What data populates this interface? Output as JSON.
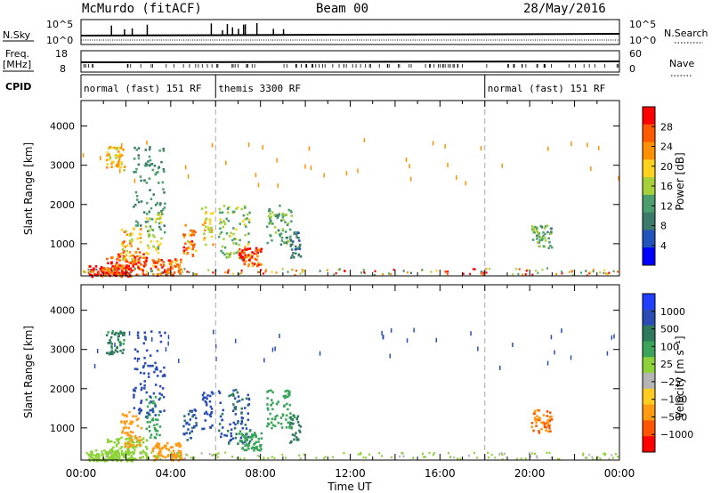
{
  "header": {
    "title": "McMurdo (fitACF)",
    "beam": "Beam 00",
    "date": "28/May/2016"
  },
  "summary_panel": {
    "nsky_label": "N.Sky",
    "nsearch_label": "N.Search",
    "freq_label_1": "Freq.",
    "freq_label_2": "[MHz]",
    "nave_label": "Nave",
    "cpid_label": "CPID",
    "left_ticks_top": [
      "10^5",
      "10^0"
    ],
    "right_ticks_top": [
      "10^5",
      "10^0"
    ],
    "left_ticks_freq": [
      "18",
      "8"
    ],
    "right_ticks_nave": [
      "60",
      "0"
    ]
  },
  "cpid_segments": [
    {
      "label": "normal (fast) 151 RF",
      "start": 0,
      "end": 6
    },
    {
      "label": "themis 3300 RF",
      "start": 6,
      "end": 18
    },
    {
      "label": "normal (fast) 151 RF",
      "start": 18,
      "end": 24
    }
  ],
  "colors": {
    "power_scale": [
      "#0000ff",
      "#2255bb",
      "#3c7a6a",
      "#4d9e6e",
      "#a6d13a",
      "#ffd21e",
      "#ff9100",
      "#ff5a00",
      "#ff0000"
    ],
    "velocity_scale": [
      "#2040ff",
      "#2a4cb4",
      "#2f7a5f",
      "#3aa55a",
      "#8ed23a",
      "#b4b4b4",
      "#ffcc22",
      "#ff9a11",
      "#ff5500",
      "#ff0000"
    ]
  },
  "chart_data": [
    {
      "type": "heatmap",
      "name": "power-panel",
      "ylabel": "Slant Range [km]",
      "xlabel": "",
      "x_ticks": [
        "00:00",
        "04:00",
        "08:00",
        "12:00",
        "16:00",
        "20:00",
        "00:00"
      ],
      "x_range_hours": [
        0,
        24
      ],
      "y_ticks": [
        1000,
        2000,
        3000,
        4000
      ],
      "ylim": [
        180,
        4650
      ],
      "colorbar": {
        "label": "Power [dB]",
        "ticks": [
          "4",
          "8",
          "12",
          "16",
          "20",
          "24",
          "28"
        ],
        "range": [
          0,
          30
        ]
      },
      "blobs": [
        {
          "t": 2.0,
          "r": 500,
          "dt": 1.8,
          "dr": 280,
          "val": 26
        },
        {
          "t": 1.3,
          "r": 300,
          "dt": 2.0,
          "dr": 160,
          "val": 28
        },
        {
          "t": 3.8,
          "r": 420,
          "dt": 1.3,
          "dr": 220,
          "val": 24
        },
        {
          "t": 2.2,
          "r": 1000,
          "dt": 0.9,
          "dr": 450,
          "val": 20
        },
        {
          "t": 3.2,
          "r": 1300,
          "dt": 0.7,
          "dr": 550,
          "val": 16
        },
        {
          "t": 4.8,
          "r": 1100,
          "dt": 0.6,
          "dr": 400,
          "val": 22
        },
        {
          "t": 5.6,
          "r": 1500,
          "dt": 0.5,
          "dr": 500,
          "val": 18
        },
        {
          "t": 6.8,
          "r": 1300,
          "dt": 1.4,
          "dr": 700,
          "val": 14
        },
        {
          "t": 7.5,
          "r": 700,
          "dt": 1.0,
          "dr": 250,
          "val": 26
        },
        {
          "t": 8.8,
          "r": 1500,
          "dt": 1.1,
          "dr": 500,
          "val": 12
        },
        {
          "t": 9.5,
          "r": 1000,
          "dt": 0.5,
          "dr": 350,
          "val": 8
        },
        {
          "t": 3.0,
          "r": 2400,
          "dt": 1.4,
          "dr": 1100,
          "val": 10
        },
        {
          "t": 20.5,
          "r": 1200,
          "dt": 0.9,
          "dr": 300,
          "val": 12
        },
        {
          "t": 1.5,
          "r": 3200,
          "dt": 0.8,
          "dr": 300,
          "val": 18
        }
      ]
    },
    {
      "type": "heatmap",
      "name": "velocity-panel",
      "ylabel": "Slant Range [km]",
      "xlabel": "Time UT",
      "x_ticks": [
        "00:00",
        "04:00",
        "08:00",
        "12:00",
        "16:00",
        "20:00",
        "00:00"
      ],
      "x_range_hours": [
        0,
        24
      ],
      "y_ticks": [
        1000,
        2000,
        3000,
        4000
      ],
      "ylim": [
        180,
        4650
      ],
      "colorbar": {
        "label": "Velocity [m s⁻¹]",
        "ticks": [
          "1000",
          "500",
          "100",
          "25",
          "−25",
          "−100",
          "−500",
          "−1000"
        ],
        "range": [
          -1200,
          1200
        ]
      },
      "blobs": [
        {
          "t": 2.0,
          "r": 500,
          "dt": 1.8,
          "dr": 280,
          "val": 50
        },
        {
          "t": 1.3,
          "r": 300,
          "dt": 2.0,
          "dr": 160,
          "val": 60
        },
        {
          "t": 3.8,
          "r": 420,
          "dt": 1.3,
          "dr": 220,
          "val": -150
        },
        {
          "t": 2.2,
          "r": 1000,
          "dt": 0.9,
          "dr": 450,
          "val": -200
        },
        {
          "t": 3.2,
          "r": 1300,
          "dt": 0.7,
          "dr": 550,
          "val": 200
        },
        {
          "t": 4.8,
          "r": 1100,
          "dt": 0.6,
          "dr": 400,
          "val": 600
        },
        {
          "t": 5.6,
          "r": 1500,
          "dt": 0.5,
          "dr": 500,
          "val": 800
        },
        {
          "t": 6.8,
          "r": 1300,
          "dt": 1.4,
          "dr": 700,
          "val": 500
        },
        {
          "t": 7.5,
          "r": 700,
          "dt": 1.0,
          "dr": 250,
          "val": 150
        },
        {
          "t": 8.8,
          "r": 1500,
          "dt": 1.1,
          "dr": 500,
          "val": 200
        },
        {
          "t": 9.5,
          "r": 1000,
          "dt": 0.5,
          "dr": 350,
          "val": 300
        },
        {
          "t": 3.0,
          "r": 2400,
          "dt": 1.4,
          "dr": 1100,
          "val": 700
        },
        {
          "t": 20.5,
          "r": 1200,
          "dt": 0.9,
          "dr": 300,
          "val": -250
        },
        {
          "t": 1.5,
          "r": 3200,
          "dt": 0.8,
          "dr": 300,
          "val": 300
        }
      ]
    }
  ]
}
